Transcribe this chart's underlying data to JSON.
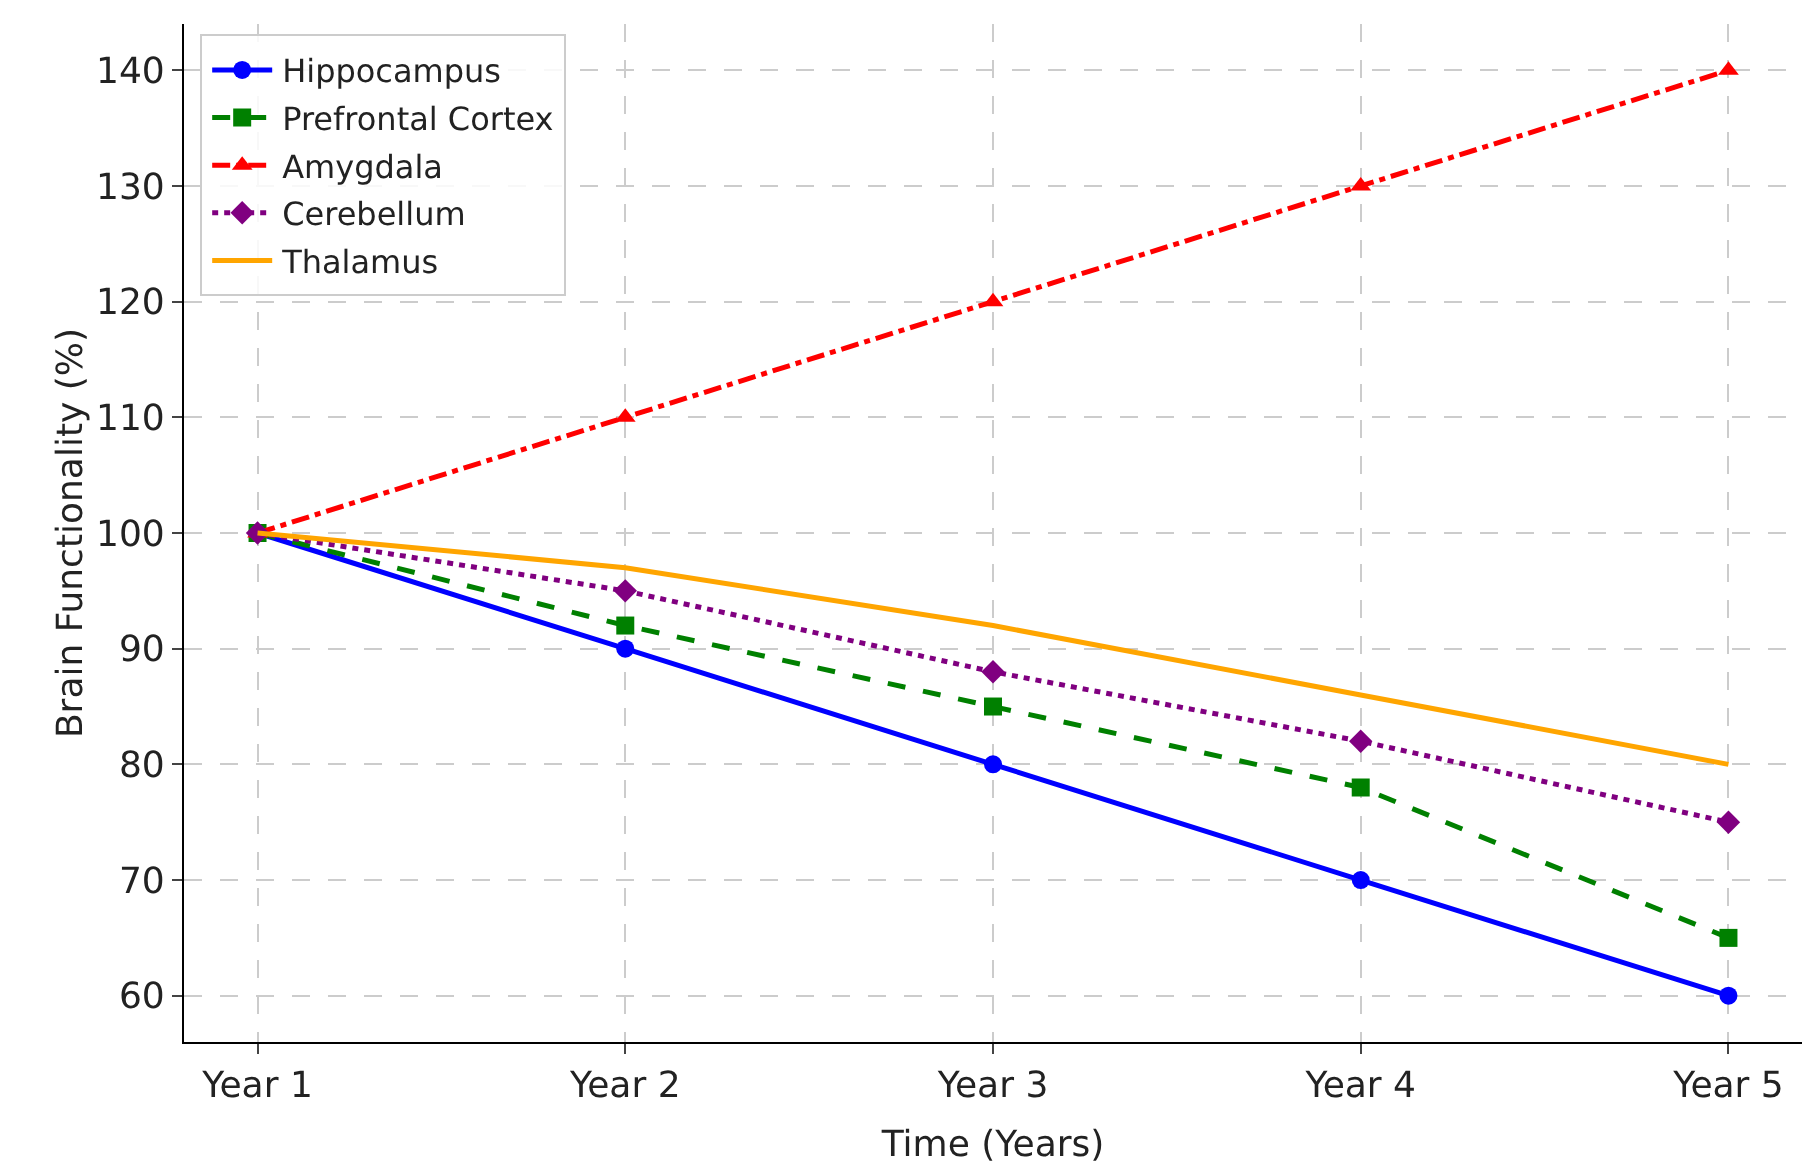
{
  "chart_data": {
    "type": "line",
    "xlabel": "Time (Years)",
    "ylabel": "Brain Functionality (%)",
    "categories": [
      "Year 1",
      "Year 2",
      "Year 3",
      "Year 4",
      "Year 5"
    ],
    "series": [
      {
        "name": "Hippocampus",
        "color": "#0000ff",
        "values": [
          100,
          90,
          80,
          70,
          60
        ],
        "marker": "circle",
        "line_style": "solid"
      },
      {
        "name": "Prefrontal Cortex",
        "color": "#008000",
        "values": [
          100,
          92,
          85,
          78,
          65
        ],
        "marker": "square",
        "line_style": "dashed"
      },
      {
        "name": "Amygdala",
        "color": "#ff0000",
        "values": [
          100,
          110,
          120,
          130,
          140
        ],
        "marker": "triangle",
        "line_style": "dashdot"
      },
      {
        "name": "Cerebellum",
        "color": "#800080",
        "values": [
          100,
          95,
          88,
          82,
          75
        ],
        "marker": "diamond",
        "line_style": "dotted"
      },
      {
        "name": "Thalamus",
        "color": "#ffa500",
        "values": [
          100,
          97,
          92,
          86,
          80
        ],
        "marker": "none",
        "line_style": "solid"
      }
    ],
    "ylim": [
      56,
      144
    ],
    "yticks": [
      60,
      70,
      80,
      90,
      100,
      110,
      120,
      130,
      140
    ],
    "grid": true,
    "legend": "top left"
  }
}
